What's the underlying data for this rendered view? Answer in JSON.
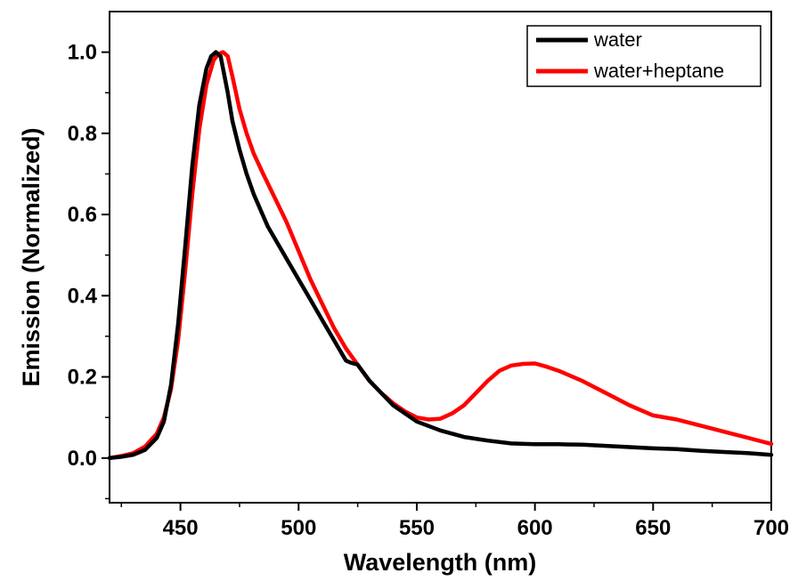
{
  "chart_data": {
    "type": "line",
    "title": "",
    "xlabel": "Wavelength (nm)",
    "ylabel": "Emission (Normalized)",
    "xlim": [
      420,
      700
    ],
    "ylim": [
      -0.11,
      1.1
    ],
    "x_ticks": [
      "450",
      "500",
      "550",
      "600",
      "650",
      "700"
    ],
    "y_ticks": [
      "0.0",
      "0.2",
      "0.4",
      "0.6",
      "0.8",
      "1.0"
    ],
    "grid": false,
    "legend_position": "top-right",
    "series": [
      {
        "name": "water",
        "color": "#000000",
        "x": [
          420,
          425,
          430,
          435,
          440,
          443,
          446,
          449,
          452,
          455,
          458,
          461,
          463,
          465,
          467,
          468,
          470,
          472,
          475,
          478,
          481,
          484,
          487,
          490,
          495,
          500,
          505,
          510,
          515,
          520,
          522,
          525,
          530,
          535,
          540,
          545,
          550,
          560,
          570,
          580,
          590,
          600,
          610,
          620,
          630,
          640,
          650,
          660,
          670,
          680,
          690,
          700
        ],
        "y": [
          0.0,
          0.003,
          0.008,
          0.02,
          0.05,
          0.09,
          0.18,
          0.33,
          0.52,
          0.72,
          0.87,
          0.96,
          0.99,
          1.0,
          0.99,
          0.96,
          0.9,
          0.83,
          0.76,
          0.7,
          0.65,
          0.61,
          0.57,
          0.54,
          0.49,
          0.44,
          0.39,
          0.34,
          0.29,
          0.24,
          0.235,
          0.23,
          0.19,
          0.16,
          0.13,
          0.11,
          0.09,
          0.068,
          0.052,
          0.043,
          0.036,
          0.034,
          0.034,
          0.033,
          0.03,
          0.027,
          0.024,
          0.022,
          0.018,
          0.015,
          0.012,
          0.008
        ]
      },
      {
        "name": "water+heptane",
        "color": "#ff0000",
        "x": [
          420,
          425,
          430,
          435,
          440,
          443,
          446,
          449,
          452,
          455,
          458,
          461,
          464,
          466,
          468,
          470,
          472,
          475,
          478,
          481,
          485,
          490,
          495,
          500,
          505,
          510,
          515,
          520,
          525,
          530,
          535,
          540,
          545,
          550,
          555,
          560,
          565,
          570,
          575,
          580,
          585,
          590,
          595,
          600,
          605,
          610,
          620,
          630,
          640,
          650,
          660,
          670,
          680,
          690,
          700
        ],
        "y": [
          0.0,
          0.005,
          0.012,
          0.028,
          0.06,
          0.1,
          0.17,
          0.29,
          0.46,
          0.65,
          0.81,
          0.92,
          0.98,
          0.995,
          1.0,
          0.99,
          0.94,
          0.86,
          0.8,
          0.75,
          0.7,
          0.64,
          0.58,
          0.51,
          0.44,
          0.38,
          0.32,
          0.27,
          0.23,
          0.19,
          0.16,
          0.135,
          0.115,
          0.1,
          0.095,
          0.097,
          0.11,
          0.13,
          0.16,
          0.19,
          0.215,
          0.228,
          0.232,
          0.233,
          0.225,
          0.215,
          0.19,
          0.16,
          0.13,
          0.105,
          0.095,
          0.08,
          0.065,
          0.05,
          0.035
        ]
      }
    ]
  }
}
